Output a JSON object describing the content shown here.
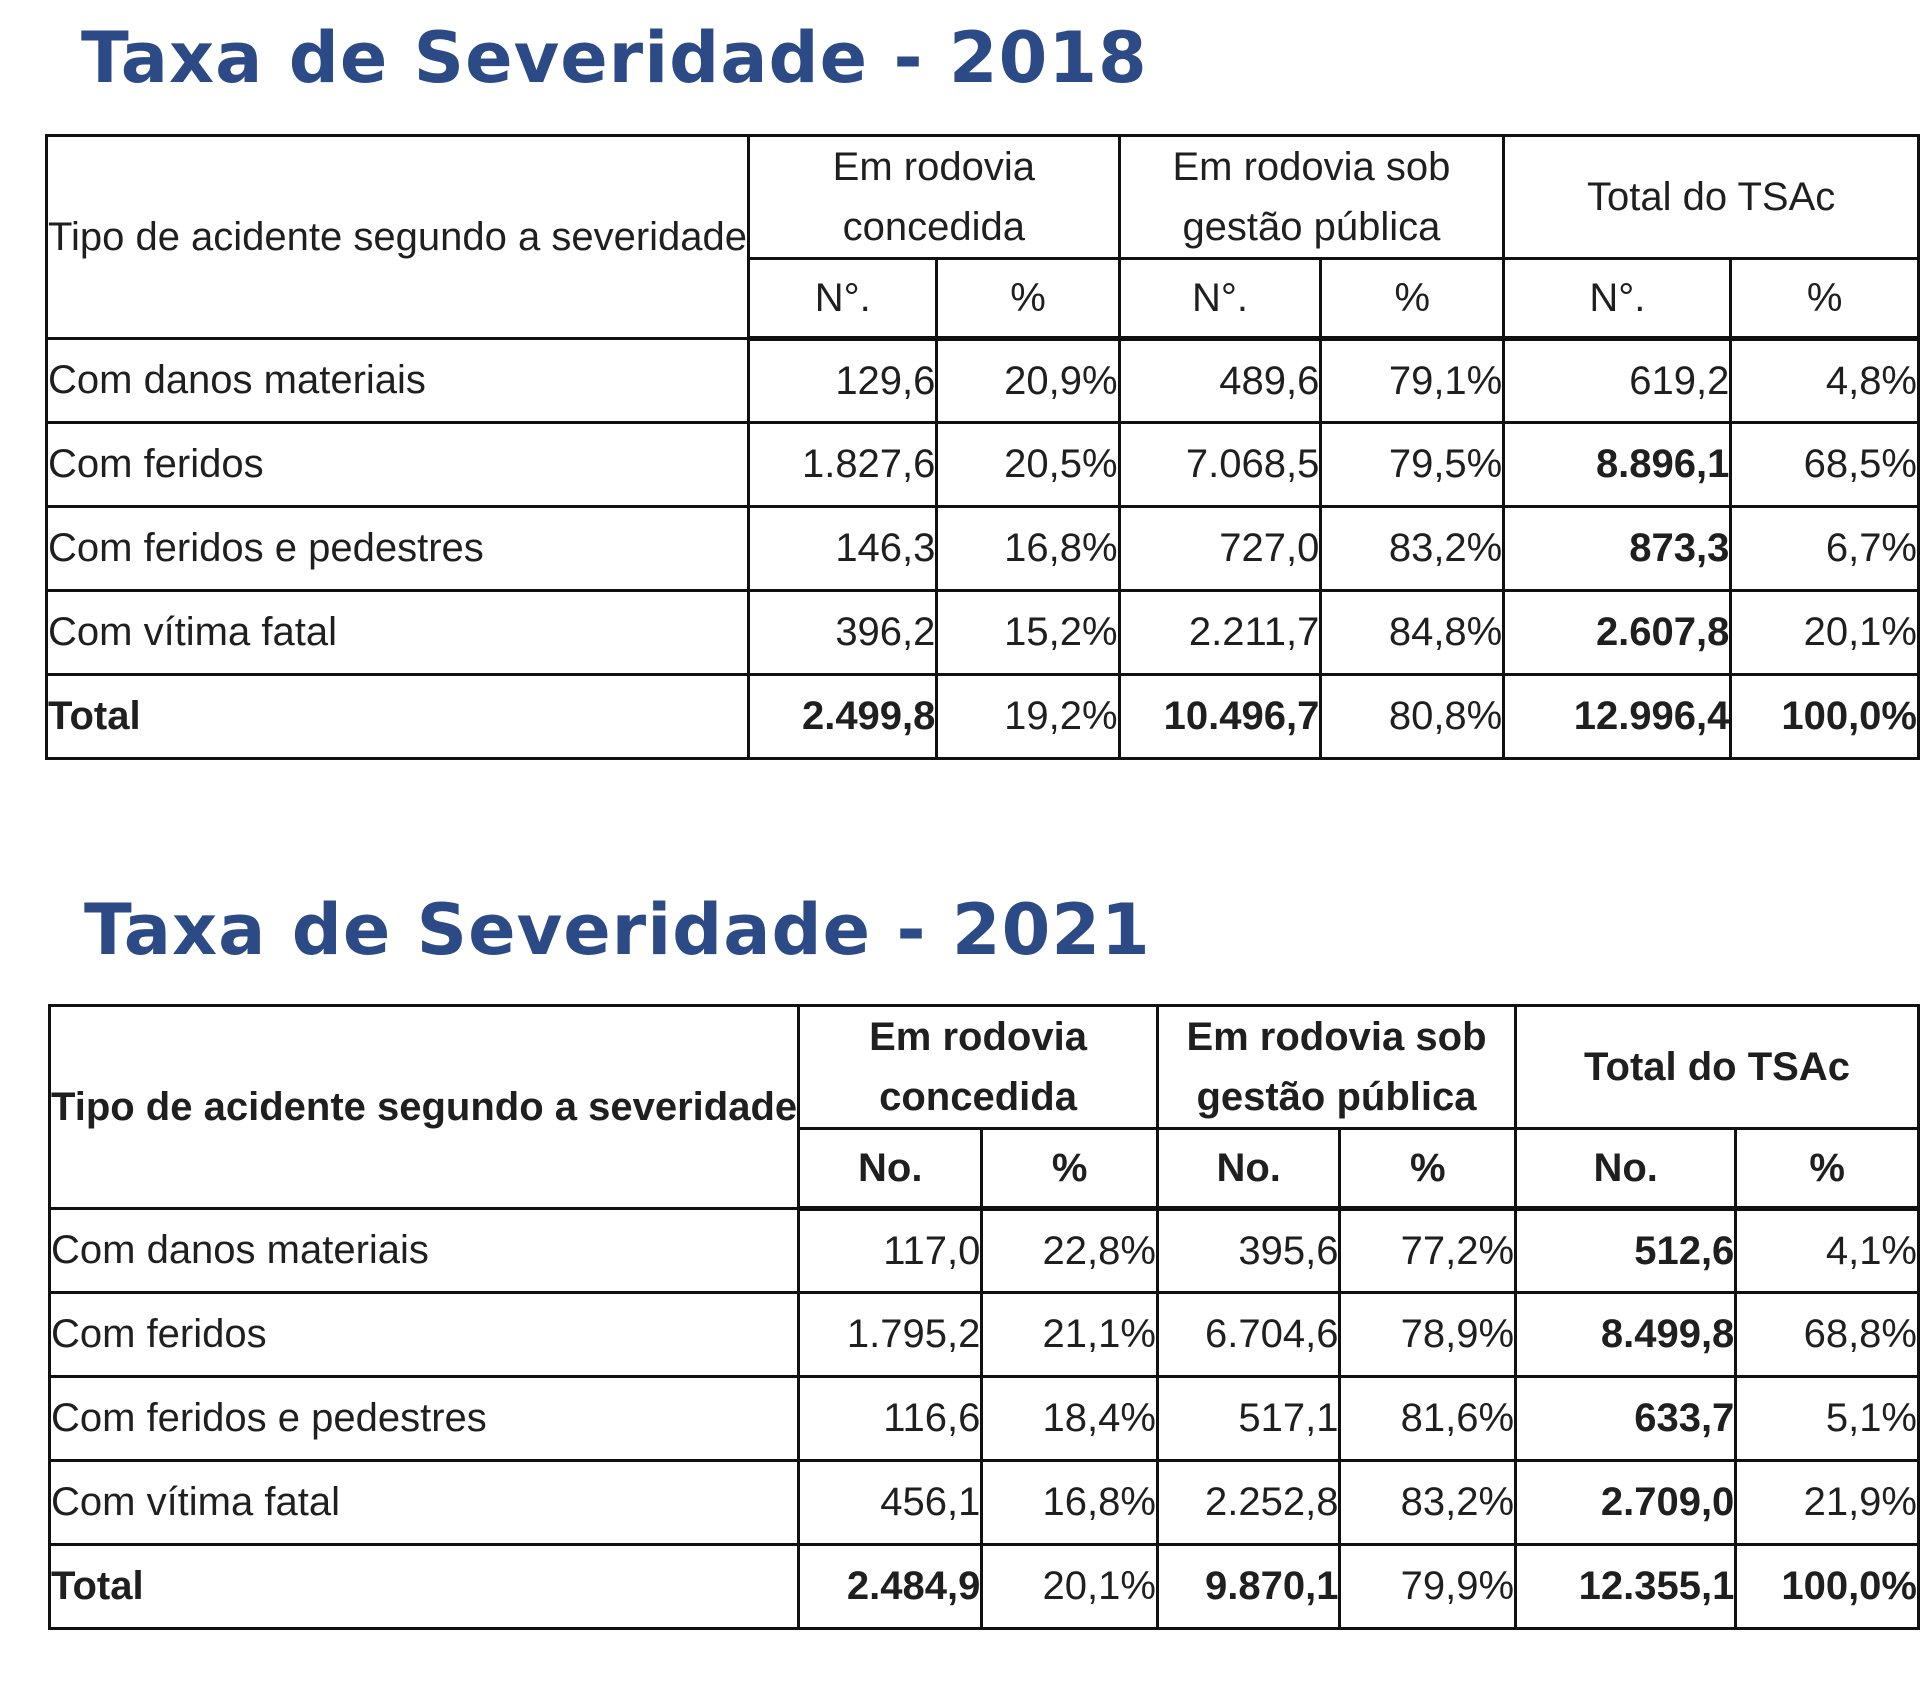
{
  "tables": [
    {
      "title": "Taxa de Severidade - 2018",
      "header": {
        "row_label": "Tipo de acidente segundo a severidade",
        "groups": [
          "Em rodovia concedida",
          "Em rodovia sob gestão pública",
          "Total do TSAc"
        ],
        "sub": [
          "N°.",
          "%",
          "N°.",
          "%",
          "N°.",
          "%"
        ]
      },
      "rows": [
        {
          "label": "Com danos materiais",
          "c_no": "129,6",
          "c_pct": "20,9%",
          "p_no": "489,6",
          "p_pct": "79,1%",
          "t_no": "619,2",
          "t_pct": "4,8%"
        },
        {
          "label": "Com feridos",
          "c_no": "1.827,6",
          "c_pct": "20,5%",
          "p_no": "7.068,5",
          "p_pct": "79,5%",
          "t_no": "8.896,1",
          "t_pct": "68,5%"
        },
        {
          "label": "Com feridos e pedestres",
          "c_no": "146,3",
          "c_pct": "16,8%",
          "p_no": "727,0",
          "p_pct": "83,2%",
          "t_no": "873,3",
          "t_pct": "6,7%"
        },
        {
          "label": "Com vítima fatal",
          "c_no": "396,2",
          "c_pct": "15,2%",
          "p_no": "2.211,7",
          "p_pct": "84,8%",
          "t_no": "2.607,8",
          "t_pct": "20,1%"
        }
      ],
      "total": {
        "label": "Total",
        "c_no": "2.499,8",
        "c_pct": "19,2%",
        "p_no": "10.496,7",
        "p_pct": "80,8%",
        "t_no": "12.996,4",
        "t_pct": "100,0%"
      }
    },
    {
      "title": "Taxa de Severidade - 2021",
      "header": {
        "row_label": "Tipo de acidente segundo a severidade",
        "groups": [
          "Em rodovia concedida",
          "Em rodovia sob gestão pública",
          "Total do TSAc"
        ],
        "sub": [
          "No.",
          "%",
          "No.",
          "%",
          "No.",
          "%"
        ]
      },
      "rows": [
        {
          "label": "Com danos materiais",
          "c_no": "117,0",
          "c_pct": "22,8%",
          "p_no": "395,6",
          "p_pct": "77,2%",
          "t_no": "512,6",
          "t_pct": "4,1%"
        },
        {
          "label": "Com feridos",
          "c_no": "1.795,2",
          "c_pct": "21,1%",
          "p_no": "6.704,6",
          "p_pct": "78,9%",
          "t_no": "8.499,8",
          "t_pct": "68,8%"
        },
        {
          "label": "Com feridos e pedestres",
          "c_no": "116,6",
          "c_pct": "18,4%",
          "p_no": "517,1",
          "p_pct": "81,6%",
          "t_no": "633,7",
          "t_pct": "5,1%"
        },
        {
          "label": "Com vítima fatal",
          "c_no": "456,1",
          "c_pct": "16,8%",
          "p_no": "2.252,8",
          "p_pct": "83,2%",
          "t_no": "2.709,0",
          "t_pct": "21,9%"
        }
      ],
      "total": {
        "label": "Total",
        "c_no": "2.484,9",
        "c_pct": "20,1%",
        "p_no": "9.870,1",
        "p_pct": "79,9%",
        "t_no": "12.355,1",
        "t_pct": "100,0%"
      }
    }
  ]
}
